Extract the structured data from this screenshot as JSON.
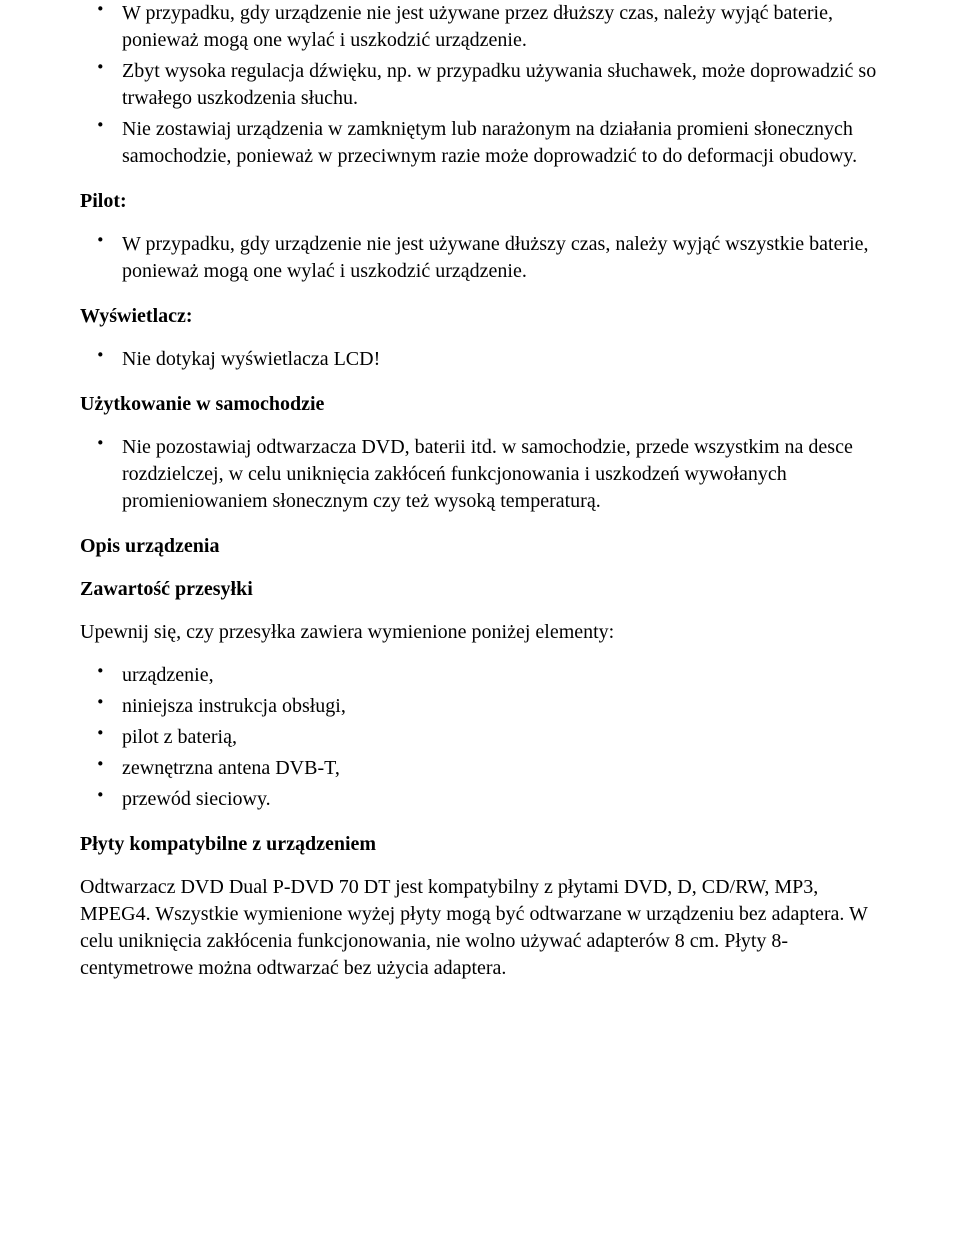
{
  "text_color": "#000000",
  "background_color": "#ffffff",
  "font_family": "Times New Roman",
  "base_font_size_pt": 15,
  "sections": {
    "top_list": {
      "items": [
        "W przypadku, gdy urządzenie nie jest używane przez dłuższy czas, należy wyjąć baterie, ponieważ mogą one wylać i uszkodzić urządzenie.",
        "Zbyt wysoka regulacja dźwięku, np. w przypadku używania słuchawek, może doprowadzić so trwałego uszkodzenia słuchu.",
        "Nie zostawiaj urządzenia w zamkniętym lub narażonym na działania promieni słonecznych samochodzie, ponieważ w przeciwnym razie może doprowadzić to do deformacji obudowy."
      ]
    },
    "pilot": {
      "label": "Pilot:",
      "items": [
        "W przypadku, gdy urządzenie nie jest używane dłuższy czas, należy wyjąć wszystkie baterie, ponieważ mogą one wylać i uszkodzić urządzenie."
      ]
    },
    "wyswietlacz": {
      "label": "Wyświetlacz:",
      "items": [
        "Nie dotykaj wyświetlacza LCD!"
      ]
    },
    "uzytkowanie": {
      "label": "Użytkowanie w samochodzie",
      "items": [
        "Nie pozostawiaj odtwarzacza DVD, baterii itd. w samochodzie, przede wszystkim na desce rozdzielczej, w celu uniknięcia zakłóceń funkcjonowania i uszkodzeń wywołanych promieniowaniem słonecznym czy też wysoką temperaturą."
      ]
    },
    "opis": {
      "label": "Opis urządzenia"
    },
    "zawartosc": {
      "label": "Zawartość przesyłki",
      "intro": "Upewnij się, czy przesyłka zawiera wymienione poniżej elementy:",
      "items": [
        "urządzenie,",
        "niniejsza instrukcja obsługi,",
        "pilot z baterią,",
        "zewnętrzna antena DVB-T,",
        "przewód sieciowy."
      ]
    },
    "plyty": {
      "label": "Płyty kompatybilne z urządzeniem",
      "para": "Odtwarzacz DVD Dual P-DVD 70 DT jest kompatybilny z płytami DVD, D, CD/RW, MP3, MPEG4. Wszystkie wymienione wyżej płyty mogą być odtwarzane w urządzeniu bez adaptera. W celu uniknięcia zakłócenia funkcjonowania, nie wolno używać adapterów 8 cm. Płyty 8-centymetrowe można odtwarzać bez użycia adaptera."
    }
  }
}
